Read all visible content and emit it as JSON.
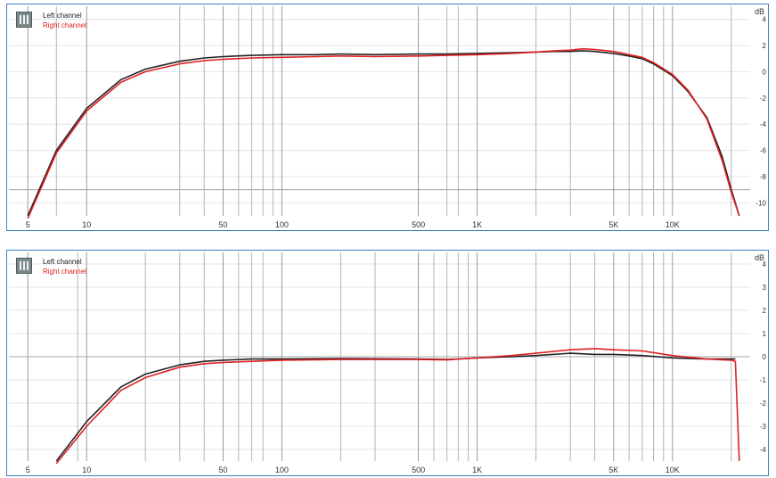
{
  "chart_data": [
    {
      "type": "line",
      "panel": "top",
      "unit_label": "dB",
      "legend_placement": "top-left",
      "legend": [
        "Left channel",
        "Right channel"
      ],
      "x_scale": "log",
      "xlim": [
        4,
        25000
      ],
      "ylim": [
        -11,
        5
      ],
      "grid": true,
      "x_tick_labels": [
        {
          "x": 5,
          "label": "5"
        },
        {
          "x": 10,
          "label": "10"
        },
        {
          "x": 50,
          "label": "50"
        },
        {
          "x": 100,
          "label": "100"
        },
        {
          "x": 500,
          "label": "500"
        },
        {
          "x": 1000,
          "label": "1K"
        },
        {
          "x": 5000,
          "label": "5K"
        },
        {
          "x": 10000,
          "label": "10K"
        }
      ],
      "x_gridlines": [
        7,
        30,
        40,
        60,
        70,
        80,
        90,
        700,
        800,
        2000,
        3000,
        6000,
        7000,
        8000,
        9000,
        20000
      ],
      "y_tick_labels": [
        {
          "y": 4,
          "label": "4"
        },
        {
          "y": 2,
          "label": "2"
        },
        {
          "y": 0,
          "label": "0"
        },
        {
          "y": -2,
          "label": "-2"
        },
        {
          "y": -4,
          "label": "-4"
        },
        {
          "y": -6,
          "label": "-6"
        },
        {
          "y": -8,
          "label": "-8"
        },
        {
          "y": -10,
          "label": "-10"
        }
      ],
      "highlight_y": [
        -9
      ],
      "series": [
        {
          "name": "Left channel",
          "color": "#222222",
          "x": [
            5,
            7,
            10,
            15,
            20,
            30,
            40,
            50,
            70,
            100,
            150,
            200,
            300,
            500,
            700,
            1000,
            1500,
            2000,
            2500,
            3000,
            3500,
            4000,
            5000,
            6000,
            7000,
            8000,
            10000,
            12000,
            15000,
            18000,
            20000,
            22000
          ],
          "y": [
            -11,
            -6,
            -2.8,
            -0.6,
            0.2,
            0.8,
            1.05,
            1.15,
            1.25,
            1.3,
            1.3,
            1.35,
            1.3,
            1.35,
            1.35,
            1.4,
            1.45,
            1.5,
            1.55,
            1.55,
            1.6,
            1.55,
            1.4,
            1.2,
            1.0,
            0.6,
            -0.3,
            -1.5,
            -3.5,
            -6.5,
            -9,
            -11
          ]
        },
        {
          "name": "Right channel",
          "color": "#e02020",
          "x": [
            5,
            7,
            10,
            15,
            20,
            30,
            40,
            50,
            70,
            100,
            150,
            200,
            300,
            500,
            700,
            1000,
            1500,
            2000,
            2500,
            3000,
            3500,
            4000,
            5000,
            6000,
            7000,
            8000,
            10000,
            12000,
            15000,
            18000,
            20000,
            22000
          ],
          "y": [
            -11.2,
            -6.2,
            -3.0,
            -0.8,
            0.0,
            0.6,
            0.85,
            0.95,
            1.05,
            1.1,
            1.15,
            1.2,
            1.15,
            1.2,
            1.25,
            1.3,
            1.4,
            1.5,
            1.6,
            1.65,
            1.75,
            1.7,
            1.55,
            1.3,
            1.1,
            0.7,
            -0.2,
            -1.4,
            -3.6,
            -6.8,
            -9.2,
            -11
          ]
        }
      ]
    },
    {
      "type": "line",
      "panel": "bottom",
      "unit_label": "dB",
      "legend_placement": "top-left",
      "legend": [
        "Left channel",
        "Right channel"
      ],
      "x_scale": "log",
      "xlim": [
        4,
        25000
      ],
      "ylim": [
        -4.5,
        4.5
      ],
      "grid": true,
      "x_tick_labels": [
        {
          "x": 5,
          "label": "5"
        },
        {
          "x": 10,
          "label": "10"
        },
        {
          "x": 50,
          "label": "50"
        },
        {
          "x": 100,
          "label": "100"
        },
        {
          "x": 500,
          "label": "500"
        },
        {
          "x": 1000,
          "label": "1K"
        },
        {
          "x": 5000,
          "label": "5K"
        },
        {
          "x": 10000,
          "label": "10K"
        }
      ],
      "x_gridlines": [
        9,
        20,
        30,
        40,
        60,
        70,
        80,
        200,
        300,
        600,
        700,
        800,
        900,
        2000,
        3000,
        4000,
        6000,
        7000,
        8000,
        9000,
        20000
      ],
      "y_tick_labels": [
        {
          "y": 4,
          "label": "4"
        },
        {
          "y": 3,
          "label": "3"
        },
        {
          "y": 2,
          "label": "2"
        },
        {
          "y": 1,
          "label": "1"
        },
        {
          "y": 0,
          "label": "0"
        },
        {
          "y": -1,
          "label": "-1"
        },
        {
          "y": -2,
          "label": "-2"
        },
        {
          "y": -3,
          "label": "-3"
        },
        {
          "y": -4,
          "label": "-4"
        }
      ],
      "highlight_y": [
        0
      ],
      "series": [
        {
          "name": "Left channel",
          "color": "#222222",
          "x": [
            7,
            10,
            15,
            20,
            30,
            40,
            50,
            70,
            100,
            200,
            500,
            700,
            800,
            1000,
            1500,
            2000,
            3000,
            4000,
            5000,
            7000,
            10000,
            15000,
            20000,
            21000
          ],
          "y": [
            -4.5,
            -2.8,
            -1.3,
            -0.75,
            -0.35,
            -0.2,
            -0.15,
            -0.1,
            -0.1,
            -0.08,
            -0.1,
            -0.12,
            -0.1,
            -0.05,
            0.0,
            0.05,
            0.15,
            0.1,
            0.1,
            0.05,
            -0.05,
            -0.1,
            -0.1,
            -0.1
          ]
        },
        {
          "name": "Right channel",
          "color": "#e02020",
          "x": [
            7,
            10,
            15,
            20,
            30,
            40,
            50,
            70,
            100,
            200,
            500,
            700,
            800,
            1000,
            1500,
            2000,
            3000,
            4000,
            5000,
            7000,
            10000,
            15000,
            20000,
            21000,
            22000
          ],
          "y": [
            -4.6,
            -3.0,
            -1.45,
            -0.9,
            -0.45,
            -0.3,
            -0.25,
            -0.2,
            -0.15,
            -0.12,
            -0.12,
            -0.14,
            -0.1,
            -0.05,
            0.05,
            0.15,
            0.3,
            0.35,
            0.3,
            0.25,
            0.05,
            -0.1,
            -0.15,
            -0.2,
            -4.5
          ]
        }
      ]
    }
  ]
}
